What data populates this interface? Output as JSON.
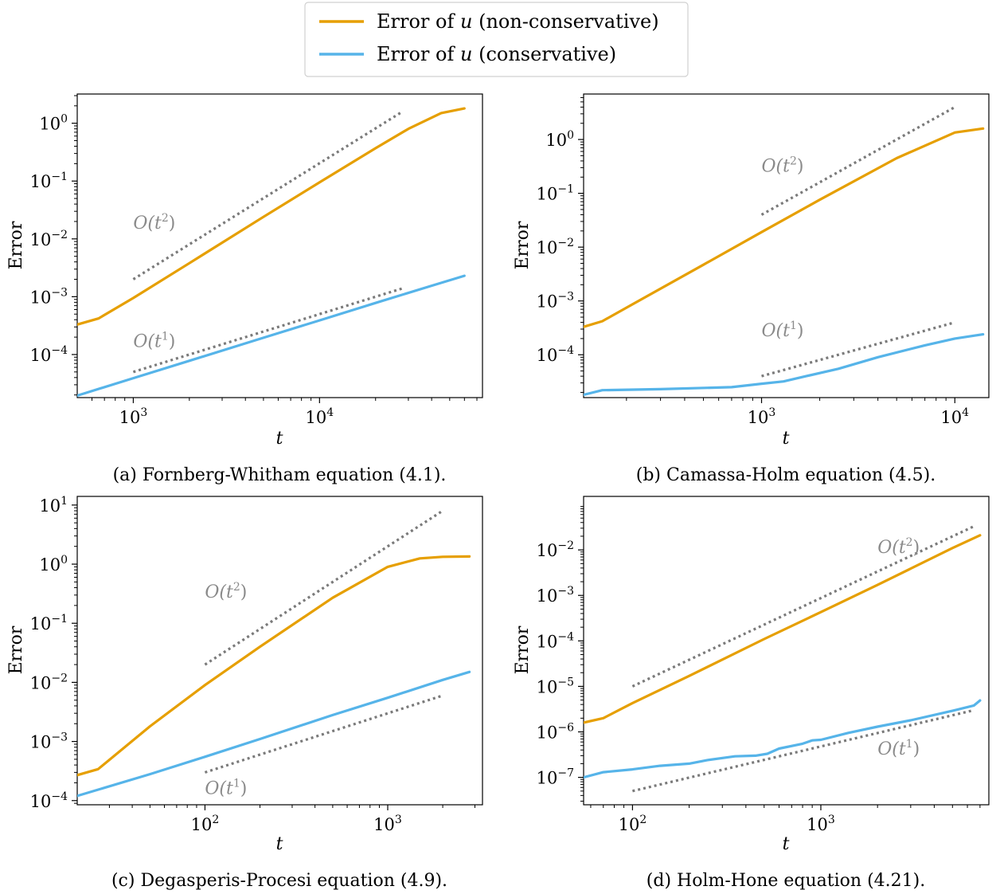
{
  "legend": {
    "entries": [
      {
        "label": "Error of u (non-conservative)",
        "color": "#E69F00"
      },
      {
        "label": "Error of u (conservative)",
        "color": "#56B4E9"
      }
    ]
  },
  "chart_data": [
    {
      "type": "line",
      "caption": "(a) Fornberg-Whitham equation (4.1).",
      "xlabel": "t",
      "ylabel": "Error",
      "xscale": "log",
      "yscale": "log",
      "xlim": [
        500,
        75000
      ],
      "ylim": [
        1.8e-05,
        3.2
      ],
      "xticks": [
        {
          "v": 1000,
          "label": "10^3"
        },
        {
          "v": 10000,
          "label": "10^4"
        }
      ],
      "yticks": [
        {
          "v": 0.0001,
          "label": "10^-4"
        },
        {
          "v": 0.001,
          "label": "10^-3"
        },
        {
          "v": 0.01,
          "label": "10^-2"
        },
        {
          "v": 0.1,
          "label": "10^-1"
        },
        {
          "v": 1,
          "label": "10^0"
        }
      ],
      "series": [
        {
          "name": "Error of u (non-conservative)",
          "color": "#E69F00",
          "x": [
            500,
            650,
            1000,
            2000,
            5000,
            10000,
            20000,
            30000,
            45000,
            60000
          ],
          "y": [
            0.00033,
            0.00042,
            0.00095,
            0.0038,
            0.024,
            0.095,
            0.37,
            0.8,
            1.5,
            1.8
          ]
        },
        {
          "name": "Error of u (conservative)",
          "color": "#56B4E9",
          "x": [
            500,
            1000,
            2000,
            5000,
            10000,
            20000,
            40000,
            60000
          ],
          "y": [
            1.95e-05,
            3.9e-05,
            7.8e-05,
            0.000195,
            0.00039,
            0.00078,
            0.00155,
            0.0023
          ]
        }
      ],
      "reference_lines": [
        {
          "label": "O(t^2)",
          "x": [
            1000,
            28000
          ],
          "y": [
            0.002,
            1.6
          ]
        },
        {
          "label": "O(t^1)",
          "x": [
            1000,
            28000
          ],
          "y": [
            5e-05,
            0.0014
          ]
        }
      ],
      "annotations": [
        {
          "text": "O(t^2)",
          "x": 1000,
          "y": 0.015
        },
        {
          "text": "O(t^1)",
          "x": 1000,
          "y": 0.000135
        }
      ]
    },
    {
      "type": "line",
      "caption": "(b) Camassa-Holm equation (4.5).",
      "xlabel": "t",
      "ylabel": "Error",
      "xscale": "log",
      "yscale": "log",
      "xlim": [
        120,
        15000
      ],
      "ylim": [
        1.6e-05,
        7.0
      ],
      "xticks": [
        {
          "v": 1000,
          "label": "10^3"
        },
        {
          "v": 10000,
          "label": "10^4"
        }
      ],
      "yticks": [
        {
          "v": 0.0001,
          "label": "10^-4"
        },
        {
          "v": 0.001,
          "label": "10^-3"
        },
        {
          "v": 0.01,
          "label": "10^-2"
        },
        {
          "v": 0.1,
          "label": "10^-1"
        },
        {
          "v": 1,
          "label": "10^0"
        }
      ],
      "series": [
        {
          "name": "Error of u (non-conservative)",
          "color": "#E69F00",
          "x": [
            120,
            150,
            200,
            500,
            1000,
            2000,
            5000,
            10000,
            14000
          ],
          "y": [
            0.00033,
            0.00042,
            0.00075,
            0.0047,
            0.019,
            0.076,
            0.45,
            1.35,
            1.6
          ]
        },
        {
          "name": "Error of u (conservative)",
          "color": "#56B4E9",
          "x": [
            120,
            150,
            300,
            700,
            1000,
            1300,
            1700,
            2500,
            4000,
            7000,
            10000,
            14000
          ],
          "y": [
            1.8e-05,
            2.2e-05,
            2.3e-05,
            2.5e-05,
            2.9e-05,
            3.2e-05,
            4e-05,
            5.5e-05,
            9e-05,
            0.00015,
            0.0002,
            0.00024
          ]
        }
      ],
      "reference_lines": [
        {
          "label": "O(t^2)",
          "x": [
            1000,
            10000
          ],
          "y": [
            0.04,
            4.0
          ]
        },
        {
          "label": "O(t^1)",
          "x": [
            1000,
            10000
          ],
          "y": [
            4e-05,
            0.0004
          ]
        }
      ],
      "annotations": [
        {
          "text": "O(t^2)",
          "x": 1000,
          "y": 0.25
        },
        {
          "text": "O(t^1)",
          "x": 1000,
          "y": 0.00022
        }
      ]
    },
    {
      "type": "line",
      "caption": "(c) Degasperis-Procesi equation (4.9).",
      "xlabel": "t",
      "ylabel": "Error",
      "xscale": "log",
      "yscale": "log",
      "xlim": [
        20,
        3300
      ],
      "ylim": [
        8.5e-05,
        14.0
      ],
      "xticks": [
        {
          "v": 100,
          "label": "10^2"
        },
        {
          "v": 1000,
          "label": "10^3"
        }
      ],
      "yticks": [
        {
          "v": 0.0001,
          "label": "10^-4"
        },
        {
          "v": 0.001,
          "label": "10^-3"
        },
        {
          "v": 0.01,
          "label": "10^-2"
        },
        {
          "v": 0.1,
          "label": "10^-1"
        },
        {
          "v": 1,
          "label": "10^0"
        },
        {
          "v": 10,
          "label": "10^1"
        }
      ],
      "series": [
        {
          "name": "Error of u (non-conservative)",
          "color": "#E69F00",
          "x": [
            20,
            26,
            50,
            100,
            200,
            500,
            1000,
            1500,
            2000,
            2800
          ],
          "y": [
            0.00027,
            0.00034,
            0.0018,
            0.009,
            0.04,
            0.27,
            0.9,
            1.25,
            1.33,
            1.35
          ]
        },
        {
          "name": "Error of u (conservative)",
          "color": "#56B4E9",
          "x": [
            20,
            50,
            100,
            200,
            500,
            1000,
            2000,
            2800
          ],
          "y": [
            0.00012,
            0.00028,
            0.00055,
            0.0011,
            0.0028,
            0.0055,
            0.011,
            0.015
          ]
        }
      ],
      "reference_lines": [
        {
          "label": "O(t^2)",
          "x": [
            100,
            2000
          ],
          "y": [
            0.02,
            8.0
          ]
        },
        {
          "label": "O(t^1)",
          "x": [
            100,
            2000
          ],
          "y": [
            0.0003,
            0.006
          ]
        }
      ],
      "annotations": [
        {
          "text": "O(t^2)",
          "x": 100,
          "y": 0.27
        },
        {
          "text": "O(t^1)",
          "x": 100,
          "y": 0.00013
        }
      ]
    },
    {
      "type": "line",
      "caption": "(d) Holm-Hone equation (4.21).",
      "xlabel": "t",
      "ylabel": "Error",
      "xscale": "log",
      "yscale": "log",
      "xlim": [
        55,
        7800
      ],
      "ylim": [
        2.5e-08,
        0.15
      ],
      "xticks": [
        {
          "v": 100,
          "label": "10^2"
        },
        {
          "v": 1000,
          "label": "10^3"
        }
      ],
      "yticks": [
        {
          "v": 1e-07,
          "label": "10^-7"
        },
        {
          "v": 1e-06,
          "label": "10^-6"
        },
        {
          "v": 1e-05,
          "label": "10^-5"
        },
        {
          "v": 0.0001,
          "label": "10^-4"
        },
        {
          "v": 0.001,
          "label": "10^-3"
        },
        {
          "v": 0.01,
          "label": "10^-2"
        }
      ],
      "series": [
        {
          "name": "Error of u (non-conservative)",
          "color": "#E69F00",
          "x": [
            55,
            70,
            100,
            200,
            500,
            1000,
            2000,
            5000,
            7000
          ],
          "y": [
            1.6e-06,
            2e-06,
            4.3e-06,
            1.7e-05,
            0.00011,
            0.00043,
            0.0017,
            0.011,
            0.021
          ]
        },
        {
          "name": "Error of u (conservative)",
          "color": "#56B4E9",
          "x": [
            55,
            70,
            100,
            140,
            200,
            250,
            350,
            450,
            520,
            600,
            800,
            900,
            1000,
            1400,
            2000,
            3000,
            5000,
            6500,
            7000
          ],
          "y": [
            1e-07,
            1.3e-07,
            1.5e-07,
            1.8e-07,
            2e-07,
            2.4e-07,
            2.9e-07,
            3e-07,
            3.3e-07,
            4.3e-07,
            5.5e-07,
            6.5e-07,
            6.7e-07,
            9.5e-07,
            1.3e-06,
            1.8e-06,
            2.9e-06,
            3.8e-06,
            4.9e-06
          ]
        }
      ],
      "reference_lines": [
        {
          "label": "O(t^2)",
          "x": [
            100,
            6500
          ],
          "y": [
            1e-05,
            0.033
          ]
        },
        {
          "label": "O(t^1)",
          "x": [
            100,
            6500
          ],
          "y": [
            5e-08,
            3e-06
          ]
        }
      ],
      "annotations": [
        {
          "text": "O(t^2)",
          "x": 2000,
          "y": 0.0085
        },
        {
          "text": "O(t^1)",
          "x": 2000,
          "y": 3.2e-07
        }
      ]
    }
  ]
}
